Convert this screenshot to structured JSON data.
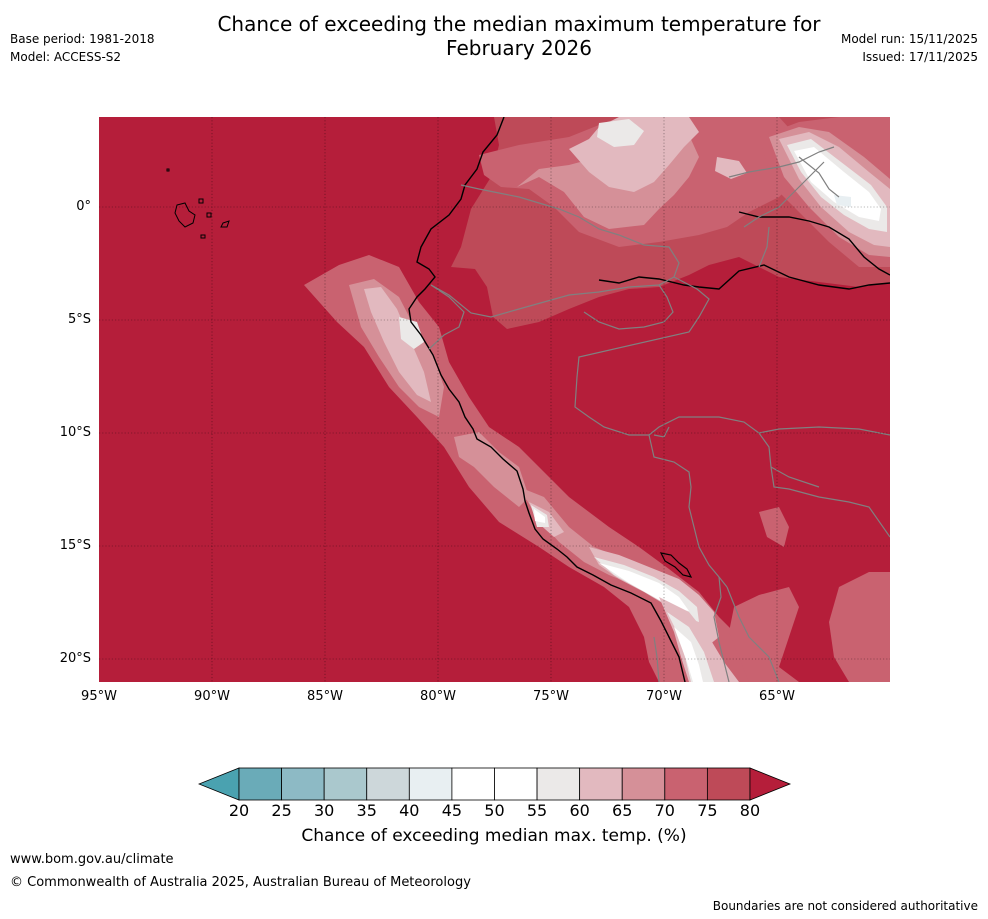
{
  "header": {
    "title_line1": "Chance of exceeding the median maximum temperature for",
    "title_line2": "February 2026",
    "base_period": "Base period: 1981-2018",
    "model": "Model: ACCESS-S2",
    "model_run": "Model run: 15/11/2025",
    "issued": "Issued: 17/11/2025"
  },
  "map": {
    "lon_ticks": [
      "95°W",
      "90°W",
      "85°W",
      "80°W",
      "75°W",
      "70°W",
      "65°W"
    ],
    "lat_ticks": [
      "0°",
      "5°S",
      "10°S",
      "15°S",
      "20°S"
    ],
    "lon_values": [
      -95,
      -90,
      -85,
      -80,
      -75,
      -70,
      -65
    ],
    "lat_values": [
      0,
      -5,
      -10,
      -15,
      -20
    ],
    "extent": {
      "lon_min": -95,
      "lon_max": -60,
      "lat_min": -21,
      "lat_max": 4
    },
    "background_color": "#b51e3a",
    "coast_color": "#000000",
    "border_color": "#808080"
  },
  "colorbar": {
    "labels": [
      "20",
      "25",
      "30",
      "35",
      "40",
      "45",
      "50",
      "55",
      "60",
      "65",
      "70",
      "75",
      "80"
    ],
    "colors": [
      "#6aabb8",
      "#8dbac5",
      "#aac8cd",
      "#cdd7da",
      "#e8eff2",
      "#ffffff",
      "#ffffff",
      "#ebe9e8",
      "#e2b9bf",
      "#d59098",
      "#c96270",
      "#be4a58"
    ],
    "under_color": "#4aa2b0",
    "over_color": "#b51e3a",
    "title": "Chance of exceeding median max. temp. (%)"
  },
  "footer": {
    "url": "www.bom.gov.au/climate",
    "copyright": "© Commonwealth of Australia 2025, Australian Bureau of Meteorology",
    "note": "Boundaries are not considered authoritative"
  }
}
